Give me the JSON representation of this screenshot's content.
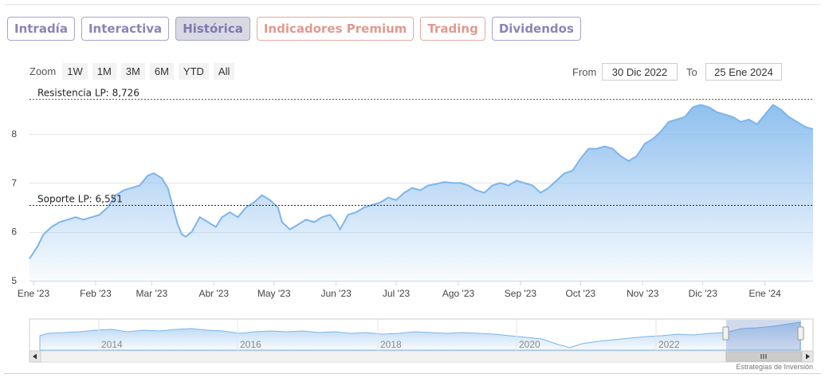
{
  "tabs": [
    {
      "label": "Intradía",
      "active": false,
      "style": "default"
    },
    {
      "label": "Interactiva",
      "active": false,
      "style": "default"
    },
    {
      "label": "Histórica",
      "active": true,
      "style": "default"
    },
    {
      "label": "Indicadores Premium",
      "active": false,
      "style": "premium"
    },
    {
      "label": "Trading",
      "active": false,
      "style": "premium"
    },
    {
      "label": "Dividendos",
      "active": false,
      "style": "default"
    }
  ],
  "zoom": {
    "label": "Zoom",
    "buttons": [
      "1W",
      "1M",
      "3M",
      "6M",
      "YTD",
      "All"
    ]
  },
  "range": {
    "from_label": "From",
    "from_value": "30 Dic 2022",
    "to_label": "To",
    "to_value": "25 Ene 2024"
  },
  "colors": {
    "tab_border": "#a9a3cc",
    "tab_text": "#8a84b8",
    "premium_border": "#e4aaa3",
    "premium_text": "#df9a90",
    "series_line": "#7cb5ec",
    "resistance_line": "#556b2f",
    "support_line": "#8b0000"
  },
  "chart_data": {
    "type": "area",
    "x_unit": "date",
    "ylim": [
      5,
      8.9
    ],
    "y_ticks": [
      5,
      6,
      7,
      8
    ],
    "grid": true,
    "x_ticks": [
      "Ene '23",
      "Feb '23",
      "Mar '23",
      "Abr '23",
      "May '23",
      "Jun '23",
      "Jul '23",
      "Ago '23",
      "Sep '23",
      "Oct '23",
      "Nov '23",
      "Dic '23",
      "Ene '24"
    ],
    "x_tick_dates": [
      "2023-01-01",
      "2023-02-01",
      "2023-03-01",
      "2023-04-01",
      "2023-05-01",
      "2023-06-01",
      "2023-07-01",
      "2023-08-01",
      "2023-09-01",
      "2023-10-01",
      "2023-11-01",
      "2023-12-01",
      "2024-01-01"
    ],
    "x_range": [
      "2022-12-30",
      "2024-01-25"
    ],
    "series": [
      {
        "x": [
          "2022-12-30",
          "2023-01-03",
          "2023-01-06",
          "2023-01-10",
          "2023-01-14",
          "2023-01-18",
          "2023-01-22",
          "2023-01-26",
          "2023-01-30",
          "2023-02-03",
          "2023-02-07",
          "2023-02-11",
          "2023-02-15",
          "2023-02-19",
          "2023-02-23",
          "2023-02-27",
          "2023-03-02",
          "2023-03-06",
          "2023-03-09",
          "2023-03-12",
          "2023-03-14",
          "2023-03-16",
          "2023-03-18",
          "2023-03-21",
          "2023-03-25",
          "2023-03-29",
          "2023-04-02",
          "2023-04-05",
          "2023-04-09",
          "2023-04-13",
          "2023-04-17",
          "2023-04-21",
          "2023-04-25",
          "2023-04-29",
          "2023-05-03",
          "2023-05-05",
          "2023-05-09",
          "2023-05-13",
          "2023-05-17",
          "2023-05-21",
          "2023-05-25",
          "2023-05-29",
          "2023-06-01",
          "2023-06-03",
          "2023-06-07",
          "2023-06-11",
          "2023-06-15",
          "2023-06-19",
          "2023-06-23",
          "2023-06-27",
          "2023-07-01",
          "2023-07-05",
          "2023-07-09",
          "2023-07-13",
          "2023-07-17",
          "2023-07-21",
          "2023-07-25",
          "2023-07-29",
          "2023-08-02",
          "2023-08-06",
          "2023-08-10",
          "2023-08-14",
          "2023-08-18",
          "2023-08-22",
          "2023-08-26",
          "2023-08-30",
          "2023-09-03",
          "2023-09-07",
          "2023-09-11",
          "2023-09-15",
          "2023-09-19",
          "2023-09-23",
          "2023-09-27",
          "2023-10-01",
          "2023-10-05",
          "2023-10-09",
          "2023-10-13",
          "2023-10-17",
          "2023-10-21",
          "2023-10-25",
          "2023-10-29",
          "2023-11-02",
          "2023-11-06",
          "2023-11-10",
          "2023-11-14",
          "2023-11-18",
          "2023-11-22",
          "2023-11-26",
          "2023-11-30",
          "2023-12-04",
          "2023-12-08",
          "2023-12-12",
          "2023-12-16",
          "2023-12-20",
          "2023-12-24",
          "2023-12-28",
          "2024-01-01",
          "2024-01-05",
          "2024-01-09",
          "2024-01-13",
          "2024-01-17",
          "2024-01-21",
          "2024-01-25"
        ],
        "y": [
          5.45,
          5.7,
          5.95,
          6.1,
          6.2,
          6.25,
          6.3,
          6.25,
          6.3,
          6.35,
          6.5,
          6.75,
          6.85,
          6.9,
          6.95,
          7.15,
          7.2,
          7.1,
          6.9,
          6.45,
          6.15,
          5.95,
          5.9,
          6.0,
          6.3,
          6.2,
          6.1,
          6.3,
          6.4,
          6.3,
          6.5,
          6.6,
          6.75,
          6.65,
          6.5,
          6.2,
          6.05,
          6.15,
          6.25,
          6.2,
          6.3,
          6.35,
          6.2,
          6.05,
          6.35,
          6.4,
          6.5,
          6.55,
          6.6,
          6.7,
          6.65,
          6.8,
          6.9,
          6.85,
          6.95,
          6.98,
          7.02,
          7.0,
          7.0,
          6.95,
          6.85,
          6.8,
          6.95,
          7.0,
          6.95,
          7.05,
          7.0,
          6.95,
          6.8,
          6.9,
          7.05,
          7.2,
          7.25,
          7.5,
          7.7,
          7.7,
          7.75,
          7.7,
          7.55,
          7.45,
          7.55,
          7.8,
          7.9,
          8.05,
          8.25,
          8.3,
          8.35,
          8.55,
          8.6,
          8.55,
          8.45,
          8.4,
          8.35,
          8.25,
          8.3,
          8.2,
          8.4,
          8.6,
          8.5,
          8.35,
          8.25,
          8.15,
          8.1
        ]
      }
    ],
    "reference_lines": [
      {
        "label": "Resistencia LP: 8,726",
        "value": 8.726,
        "style": "dashed"
      },
      {
        "label": "Soporte LP: 6,551",
        "value": 6.551,
        "style": "dashed"
      }
    ],
    "navigator": {
      "ticks": [
        "2014",
        "2016",
        "2018",
        "2020",
        "2022"
      ]
    }
  },
  "credit": "Estrategias de Inversión"
}
